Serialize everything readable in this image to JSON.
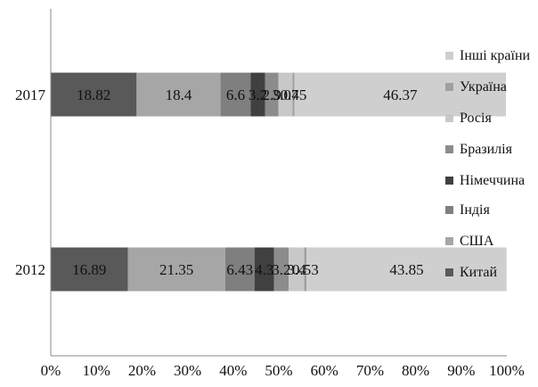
{
  "chart_data": {
    "type": "bar",
    "orientation": "horizontal",
    "stacked": true,
    "percent": true,
    "title": "",
    "categories": [
      "2017",
      "2012"
    ],
    "xlim": [
      0,
      100
    ],
    "x_ticks": [
      "0%",
      "10%",
      "20%",
      "30%",
      "40%",
      "50%",
      "60%",
      "70%",
      "80%",
      "90%",
      "100%"
    ],
    "grid": false,
    "legend_position": "right",
    "series": [
      {
        "name": "Китай",
        "color": "#595959",
        "values": [
          18.82,
          16.89
        ],
        "labels": [
          "18.82",
          "16.89"
        ]
      },
      {
        "name": "США",
        "color": "#a6a6a6",
        "values": [
          18.4,
          21.35
        ],
        "labels": [
          "18.4",
          "21.35"
        ]
      },
      {
        "name": "Індія",
        "color": "#7f7f7f",
        "values": [
          6.6,
          6.43
        ],
        "labels": [
          "6.6",
          "6.43"
        ]
      },
      {
        "name": "Німеччина",
        "color": "#404040",
        "values": [
          3.2,
          4.3
        ],
        "labels": [
          "3.2",
          "4.3"
        ]
      },
      {
        "name": "Бразилія",
        "color": "#8c8c8c",
        "values": [
          2.9,
          3.2
        ],
        "labels": [
          "2.9",
          "3.2"
        ]
      },
      {
        "name": "Росія",
        "color": "#c8c8c8",
        "values": [
          3.07,
          3.4
        ],
        "labels": [
          "3.07",
          "3.4"
        ]
      },
      {
        "name": "Україна",
        "color": "#a0a0a0",
        "values": [
          0.45,
          0.53
        ],
        "labels": [
          "0.45",
          "0.53"
        ]
      },
      {
        "name": "Інші країни",
        "color": "#cfcfcf",
        "values": [
          46.37,
          43.85
        ],
        "labels": [
          "46.37",
          "43.85"
        ]
      }
    ],
    "legend_order": [
      "Інші країни",
      "Україна",
      "Росія",
      "Бразилія",
      "Німеччина",
      "Індія",
      "США",
      "Китай"
    ]
  }
}
